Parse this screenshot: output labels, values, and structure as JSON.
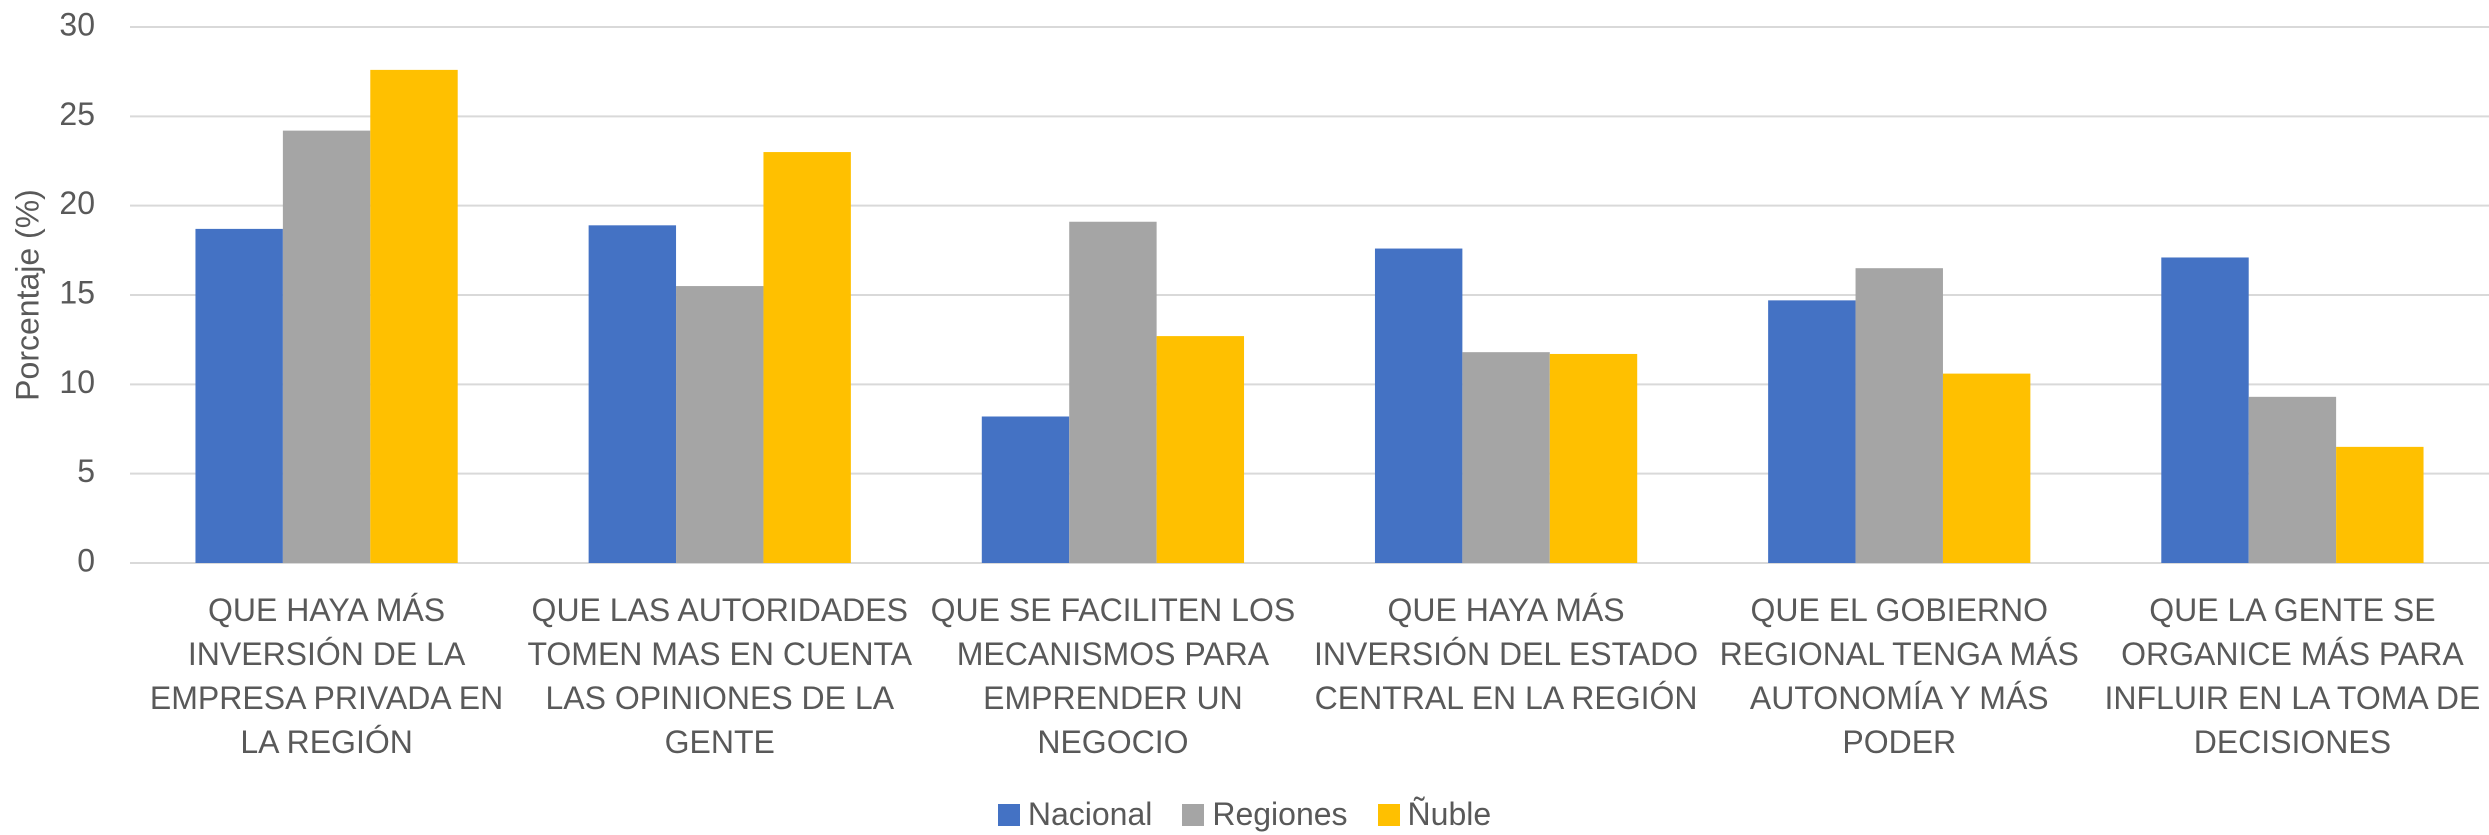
{
  "chart_data": {
    "type": "bar",
    "y_label": "Porcentaje (%)",
    "categories": [
      "QUE HAYA MÁS INVERSIÓN DE LA EMPRESA PRIVADA EN LA REGIÓN",
      "QUE LAS AUTORIDADES TOMEN MAS EN CUENTA LAS OPINIONES DE LA GENTE",
      "QUE SE FACILITEN LOS MECANISMOS PARA EMPRENDER UN NEGOCIO",
      "QUE HAYA MÁS INVERSIÓN DEL ESTADO CENTRAL EN LA REGIÓN",
      "QUE EL GOBIERNO REGIONAL TENGA MÁS AUTONOMÍA Y MÁS PODER",
      "QUE LA GENTE SE ORGANICE MÁS PARA INFLUIR EN LA TOMA DE DECISIONES"
    ],
    "series": [
      {
        "name": "Nacional",
        "color": "#4472c4",
        "values": [
          18.7,
          18.9,
          8.2,
          17.6,
          14.7,
          17.1
        ]
      },
      {
        "name": "Regiones",
        "color": "#a5a5a5",
        "values": [
          24.2,
          15.5,
          19.1,
          11.8,
          16.5,
          9.3
        ]
      },
      {
        "name": "Ñuble",
        "color": "#ffc000",
        "values": [
          27.6,
          23.0,
          12.7,
          11.7,
          10.6,
          6.5
        ]
      }
    ],
    "ylim": [
      0,
      30
    ],
    "yticks": [
      0,
      5,
      10,
      15,
      20,
      25,
      30
    ],
    "grid": true,
    "legend": "bottom"
  }
}
